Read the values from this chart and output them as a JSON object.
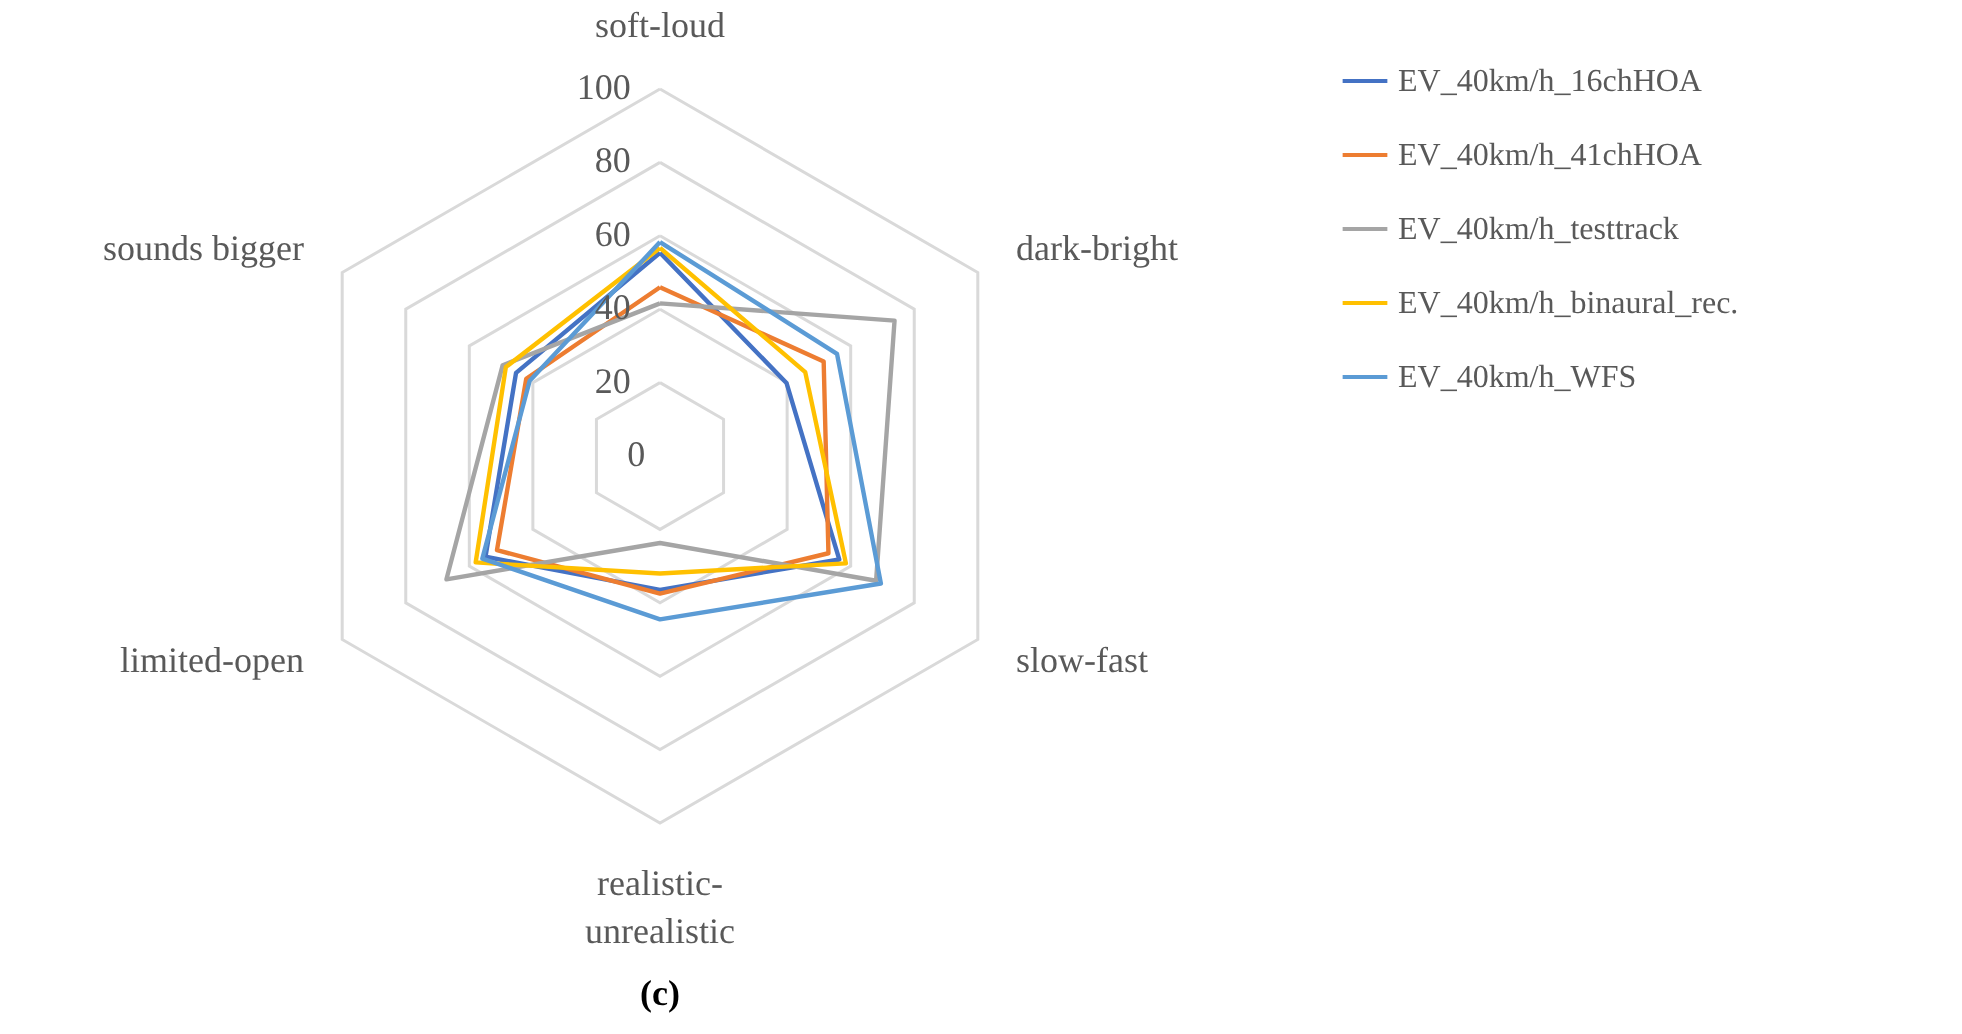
{
  "chart_data": {
    "type": "radar",
    "title": "(c)",
    "categories": [
      "soft-loud",
      "dark-bright",
      "slow-fast",
      "realistic-unrealistic",
      "limited-open",
      "sounds bigger"
    ],
    "ylim": [
      0,
      100
    ],
    "yticks": [
      0,
      20,
      40,
      60,
      80,
      100
    ],
    "grid": true,
    "legend": "right",
    "series": [
      {
        "name": "EV_40km/h_16chHOA",
        "color": "#4472c4",
        "values": [
          55.4,
          39.8,
          56.4,
          36.5,
          54.9,
          45.3
        ]
      },
      {
        "name": "EV_40km/h_41chHOA",
        "color": "#ed7d31",
        "values": [
          46,
          51.5,
          53,
          37.5,
          51.3,
          42.1
        ]
      },
      {
        "name": "EV_40km/h_testtrack",
        "color": "#a5a5a5",
        "values": [
          41.6,
          73.8,
          68,
          23.7,
          67.2,
          49.5
        ]
      },
      {
        "name": "EV_40km/h_binaural_rec.",
        "color": "#ffc000",
        "values": [
          56.7,
          45.7,
          58.5,
          32,
          58,
          48.5
        ]
      },
      {
        "name": "EV_40km/h_WFS",
        "color": "#5b9bd5",
        "values": [
          58.3,
          55.7,
          69.5,
          44.5,
          55.9,
          41
        ]
      }
    ]
  }
}
